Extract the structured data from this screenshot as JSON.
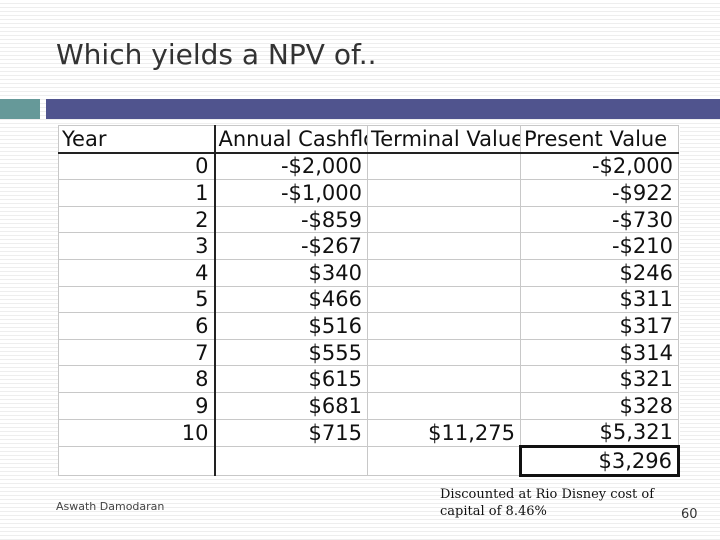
{
  "slide": {
    "title": "Which yields a NPV of..",
    "author": "Aswath Damodaran",
    "note": "Discounted at Rio Disney cost of capital of 8.46%",
    "page_number": "60"
  },
  "table": {
    "headers": [
      "Year",
      "Annual Cashflo",
      "Terminal Value",
      "Present Value"
    ],
    "rows": [
      [
        "0",
        "-$2,000",
        "",
        "-$2,000"
      ],
      [
        "1",
        "-$1,000",
        "",
        "-$922"
      ],
      [
        "2",
        "-$859",
        "",
        "-$730"
      ],
      [
        "3",
        "-$267",
        "",
        "-$210"
      ],
      [
        "4",
        "$340",
        "",
        "$246"
      ],
      [
        "5",
        "$466",
        "",
        "$311"
      ],
      [
        "6",
        "$516",
        "",
        "$317"
      ],
      [
        "7",
        "$555",
        "",
        "$314"
      ],
      [
        "8",
        "$615",
        "",
        "$321"
      ],
      [
        "9",
        "$681",
        "",
        "$328"
      ],
      [
        "10",
        "$715",
        "$11,275",
        "$5,321"
      ],
      [
        "",
        "",
        "",
        "$3,296"
      ]
    ]
  },
  "colors": {
    "accent_teal": "#669999",
    "accent_navy": "#50548e"
  }
}
